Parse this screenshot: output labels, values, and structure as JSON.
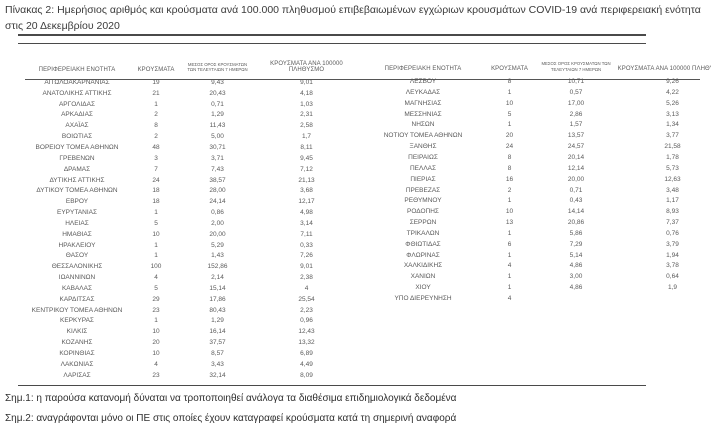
{
  "title": "Πίνακας 2:  Ημερήσιος αριθμός και κρούσματα ανά 100.000 πληθυσμού επιβεβαιωμένων εγχώριων κρουσμάτων COVID-19 ανά περιφερειακή ενότητα στις 20 Δεκεμβρίου 2020",
  "columns": [
    "ΠΕΡΙΦΕΡΕΙΑΚΗ ΕΝΟΤΗΤΑ",
    "ΚΡΟΥΣΜΑΤΑ",
    "ΜΕΣΟΣ ΟΡΟΣ ΚΡΟΥΣΜΑΤΩΝ ΤΩΝ ΤΕΛΕΥΤΑΙΩΝ 7 ΗΜΕΡΩΝ",
    "ΚΡΟΥΣΜΑΤΑ ΑΝΑ 100000 ΠΛΗΘΥΣΜΟ"
  ],
  "table_left": {
    "rows": [
      [
        "ΑΙΤΩΛΟΑΚΑΡΝΑΝΙΑΣ",
        "19",
        "9,43",
        "9,01"
      ],
      [
        "ΑΝΑΤΟΛΙΚΗΣ ΑΤΤΙΚΗΣ",
        "21",
        "20,43",
        "4,18"
      ],
      [
        "ΑΡΓΟΛΙΔΑΣ",
        "1",
        "0,71",
        "1,03"
      ],
      [
        "ΑΡΚΑΔΙΑΣ",
        "2",
        "1,29",
        "2,31"
      ],
      [
        "ΑΧΑΪΑΣ",
        "8",
        "11,43",
        "2,58"
      ],
      [
        "ΒΟΙΩΤΙΑΣ",
        "2",
        "5,00",
        "1,7"
      ],
      [
        "ΒΟΡΕΙΟΥ ΤΟΜΕΑ ΑΘΗΝΩΝ",
        "48",
        "30,71",
        "8,11"
      ],
      [
        "ΓΡΕΒΕΝΩΝ",
        "3",
        "3,71",
        "9,45"
      ],
      [
        "ΔΡΑΜΑΣ",
        "7",
        "7,43",
        "7,12"
      ],
      [
        "ΔΥΤΙΚΗΣ ΑΤΤΙΚΗΣ",
        "24",
        "38,57",
        "21,13"
      ],
      [
        "ΔΥΤΙΚΟΥ ΤΟΜΕΑ ΑΘΗΝΩΝ",
        "18",
        "28,00",
        "3,68"
      ],
      [
        "ΕΒΡΟΥ",
        "18",
        "24,14",
        "12,17"
      ],
      [
        "ΕΥΡΥΤΑΝΙΑΣ",
        "1",
        "0,86",
        "4,98"
      ],
      [
        "ΗΛΕΙΑΣ",
        "5",
        "2,00",
        "3,14"
      ],
      [
        "ΗΜΑΘΙΑΣ",
        "10",
        "20,00",
        "7,11"
      ],
      [
        "ΗΡΑΚΛΕΙΟΥ",
        "1",
        "5,29",
        "0,33"
      ],
      [
        "ΘΑΣΟΥ",
        "1",
        "1,43",
        "7,26"
      ],
      [
        "ΘΕΣΣΑΛΟΝΙΚΗΣ",
        "100",
        "152,86",
        "9,01"
      ],
      [
        "ΙΩΑΝΝΙΝΩΝ",
        "4",
        "2,14",
        "2,38"
      ],
      [
        "ΚΑΒΑΛΑΣ",
        "5",
        "15,14",
        "4"
      ],
      [
        "ΚΑΡΔΙΤΣΑΣ",
        "29",
        "17,86",
        "25,54"
      ],
      [
        "ΚΕΝΤΡΙΚΟΥ ΤΟΜΕΑ ΑΘΗΝΩΝ",
        "23",
        "80,43",
        "2,23"
      ],
      [
        "ΚΕΡΚΥΡΑΣ",
        "1",
        "1,29",
        "0,96"
      ],
      [
        "ΚΙΛΚΙΣ",
        "10",
        "16,14",
        "12,43"
      ],
      [
        "ΚΟΖΑΝΗΣ",
        "20",
        "37,57",
        "13,32"
      ],
      [
        "ΚΟΡΙΝΘΙΑΣ",
        "10",
        "8,57",
        "6,89"
      ],
      [
        "ΛΑΚΩΝΙΑΣ",
        "4",
        "3,43",
        "4,49"
      ],
      [
        "ΛΑΡΙΣΑΣ",
        "23",
        "32,14",
        "8,09"
      ]
    ]
  },
  "table_right": {
    "rows": [
      [
        "ΛΕΣΒΟΥ",
        "8",
        "10,71",
        "9,26"
      ],
      [
        "ΛΕΥΚΑΔΑΣ",
        "1",
        "0,57",
        "4,22"
      ],
      [
        "ΜΑΓΝΗΣΙΑΣ",
        "10",
        "17,00",
        "5,26"
      ],
      [
        "ΜΕΣΣΗΝΙΑΣ",
        "5",
        "2,86",
        "3,13"
      ],
      [
        "ΝΗΣΩΝ",
        "1",
        "1,57",
        "1,34"
      ],
      [
        "ΝΟΤΙΟΥ ΤΟΜΕΑ ΑΘΗΝΩΝ",
        "20",
        "13,57",
        "3,77"
      ],
      [
        "ΞΑΝΘΗΣ",
        "24",
        "24,57",
        "21,58"
      ],
      [
        "ΠΕΙΡΑΙΩΣ",
        "8",
        "20,14",
        "1,78"
      ],
      [
        "ΠΕΛΛΑΣ",
        "8",
        "12,14",
        "5,73"
      ],
      [
        "ΠΙΕΡΙΑΣ",
        "16",
        "20,00",
        "12,63"
      ],
      [
        "ΠΡΕΒΕΖΑΣ",
        "2",
        "0,71",
        "3,48"
      ],
      [
        "ΡΕΘΥΜΝΟΥ",
        "1",
        "0,43",
        "1,17"
      ],
      [
        "ΡΟΔΟΠΗΣ",
        "10",
        "14,14",
        "8,93"
      ],
      [
        "ΣΕΡΡΩΝ",
        "13",
        "20,86",
        "7,37"
      ],
      [
        "ΤΡΙΚΑΛΩΝ",
        "1",
        "5,86",
        "0,76"
      ],
      [
        "ΦΘΙΩΤΙΔΑΣ",
        "6",
        "7,29",
        "3,79"
      ],
      [
        "ΦΛΩΡΙΝΑΣ",
        "1",
        "5,14",
        "1,94"
      ],
      [
        "ΧΑΛΚΙΔΙΚΗΣ",
        "4",
        "4,86",
        "3,78"
      ],
      [
        "ΧΑΝΙΩΝ",
        "1",
        "3,00",
        "0,64"
      ],
      [
        "ΧΙΟΥ",
        "1",
        "4,86",
        "1,9"
      ],
      [
        "ΥΠΟ ΔΙΕΡΕΥΝΗΣΗ",
        "4",
        "",
        ""
      ]
    ]
  },
  "notes": [
    "Σημ.1: η παρούσα κατανομή δύναται να τροποποιηθεί ανάλογα τα διαθέσιμα επιδημιολογικά δεδομένα",
    "Σημ.2: αναγράφονται μόνο οι ΠΕ στις οποίες έχουν καταγραφεί κρούσματα κατά τη σημερινή αναφορά"
  ],
  "colors": {
    "text_title": "#3a3a3a",
    "text_table": "#5a5a5a",
    "text_notes": "#2e2e2e",
    "rule": "#4a4a4a",
    "background": "#ffffff"
  }
}
